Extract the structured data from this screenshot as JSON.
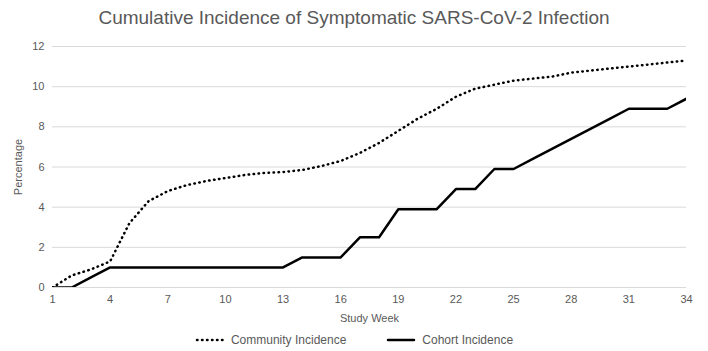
{
  "chart_data": {
    "type": "line",
    "title": "Cumulative Incidence of Symptomatic SARS-CoV-2 Infection",
    "x_label": "Study Week",
    "y_label": "Percentage",
    "x": [
      1,
      2,
      3,
      4,
      5,
      6,
      7,
      8,
      9,
      10,
      11,
      12,
      13,
      14,
      15,
      16,
      17,
      18,
      19,
      20,
      21,
      22,
      23,
      24,
      25,
      26,
      27,
      28,
      29,
      30,
      31,
      32,
      33,
      34
    ],
    "series": [
      {
        "name": "Community Incidence",
        "color": "#000000",
        "line_style": "dotted",
        "values": [
          0,
          0.6,
          0.9,
          1.3,
          3.2,
          4.3,
          4.8,
          5.1,
          5.3,
          5.45,
          5.6,
          5.7,
          5.75,
          5.85,
          6.05,
          6.3,
          6.7,
          7.2,
          7.8,
          8.4,
          8.9,
          9.5,
          9.9,
          10.1,
          10.3,
          10.4,
          10.5,
          10.7,
          10.8,
          10.9,
          11.0,
          11.1,
          11.2,
          11.3
        ]
      },
      {
        "name": "Cohort Incidence",
        "color": "#000000",
        "line_style": "solid",
        "values": [
          0,
          0,
          0.5,
          1,
          1,
          1,
          1,
          1,
          1,
          1,
          1,
          1,
          1,
          1.5,
          1.5,
          1.5,
          2.5,
          2.5,
          3.9,
          3.9,
          3.9,
          4.9,
          4.9,
          5.9,
          5.9,
          6.4,
          6.9,
          7.4,
          7.9,
          8.4,
          8.9,
          8.9,
          8.9,
          9.4
        ]
      }
    ],
    "xlim": [
      1,
      34
    ],
    "xticks": [
      1,
      4,
      7,
      10,
      13,
      16,
      19,
      22,
      25,
      28,
      31,
      34
    ],
    "ylim": [
      0,
      12
    ],
    "yticks": [
      0,
      2,
      4,
      6,
      8,
      10,
      12
    ],
    "grid": true,
    "legend": "bottom"
  }
}
